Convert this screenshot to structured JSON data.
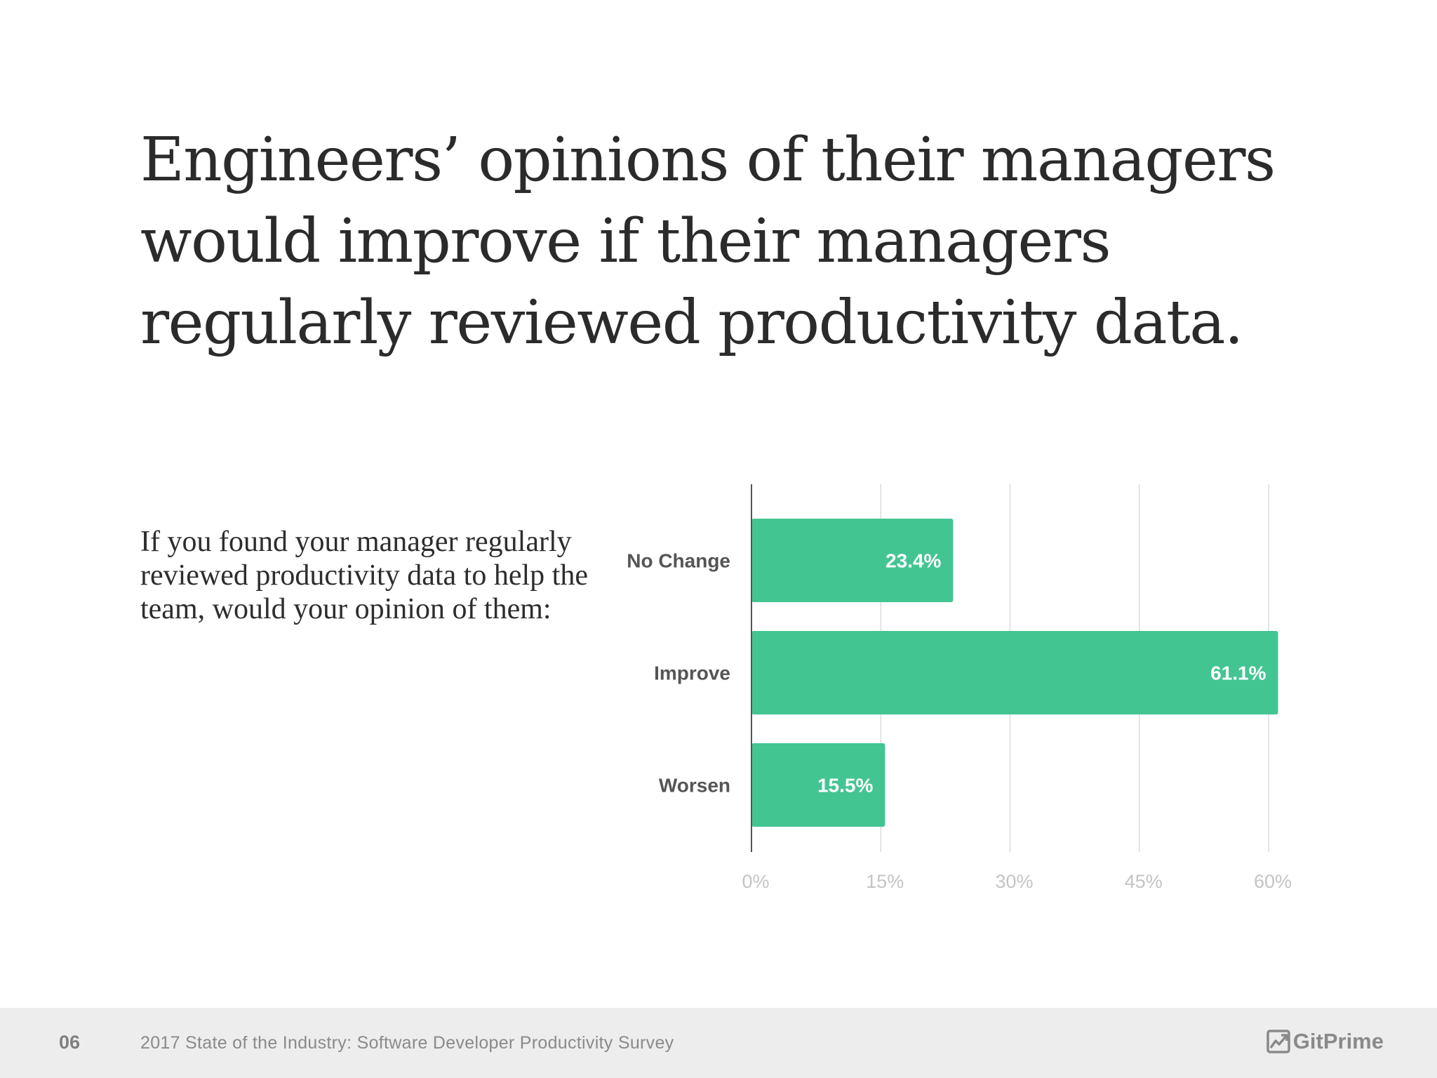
{
  "headline": "Engineers’ opinions of their managers would improve if their managers regularly reviewed productivity data.",
  "question": "If you found your manager regularly reviewed productivity data to help the team, would your opinion of them:",
  "footer": {
    "page_number": "06",
    "title": "2017 State of the Industry: Software Developer Productivity Survey",
    "brand": "GitPrime",
    "brand_icon": "gitprime-logo-icon"
  },
  "colors": {
    "bar": "#43c592",
    "bar_label": "#ffffff",
    "category_label": "#555555",
    "tick_label": "#c4c4c4",
    "grid": "#dcdcdc",
    "axis": "#555555",
    "footer_bg": "#ededee"
  },
  "chart_data": {
    "type": "bar",
    "orientation": "horizontal",
    "categories": [
      "No Change",
      "Improve",
      "Worsen"
    ],
    "values": [
      23.4,
      61.1,
      15.5
    ],
    "value_labels": [
      "23.4%",
      "61.1%",
      "15.5%"
    ],
    "x_ticks": [
      0,
      15,
      30,
      45,
      60
    ],
    "x_tick_labels": [
      "0%",
      "15%",
      "30%",
      "45%",
      "60%"
    ],
    "xlim": [
      0,
      60
    ],
    "grid": true,
    "legend": false
  }
}
